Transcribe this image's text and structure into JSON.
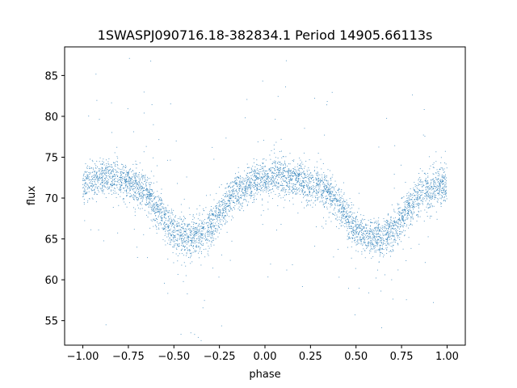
{
  "chart_data": {
    "type": "scatter",
    "title": "1SWASPJ090716.18-382834.1 Period 14905.66113s",
    "xlabel": "phase",
    "ylabel": "flux",
    "xlim": [
      -1.1,
      1.1
    ],
    "ylim": [
      52,
      88.5
    ],
    "x_ticks": [
      -1.0,
      -0.75,
      -0.5,
      -0.25,
      0.0,
      0.25,
      0.5,
      0.75,
      1.0
    ],
    "x_tick_labels": [
      "−1.00",
      "−0.75",
      "−0.50",
      "−0.25",
      "0.00",
      "0.25",
      "0.50",
      "0.75",
      "1.00"
    ],
    "y_ticks": [
      55,
      60,
      65,
      70,
      75,
      80,
      85
    ],
    "y_tick_labels": [
      "55",
      "60",
      "65",
      "70",
      "75",
      "80",
      "85"
    ],
    "grid": false,
    "marker_color": "#1f77b4",
    "series": [
      {
        "x": [
          -1.0,
          -0.95,
          -0.9,
          -0.85,
          -0.8,
          -0.75,
          -0.7,
          -0.65,
          -0.6,
          -0.55,
          -0.5,
          -0.45,
          -0.4,
          -0.35,
          -0.3,
          -0.25,
          -0.2,
          -0.15,
          -0.1,
          -0.05,
          0.0,
          0.05,
          0.1,
          0.15,
          0.2,
          0.25,
          0.3,
          0.35,
          0.4,
          0.45,
          0.5,
          0.55,
          0.6,
          0.65,
          0.7,
          0.75,
          0.8,
          0.85,
          0.9,
          0.95,
          1.0
        ],
        "y": [
          71.5,
          72.3,
          72.6,
          72.6,
          72.3,
          71.9,
          71.5,
          70.6,
          69.0,
          67.2,
          65.8,
          65.2,
          65.2,
          65.6,
          66.3,
          68.0,
          69.6,
          70.7,
          71.4,
          72.1,
          72.4,
          72.6,
          72.6,
          72.4,
          72.0,
          71.7,
          71.3,
          70.7,
          69.3,
          67.6,
          66.0,
          65.3,
          65.2,
          65.3,
          66.0,
          67.4,
          69.0,
          70.3,
          70.9,
          71.4,
          71.5
        ]
      }
    ]
  }
}
